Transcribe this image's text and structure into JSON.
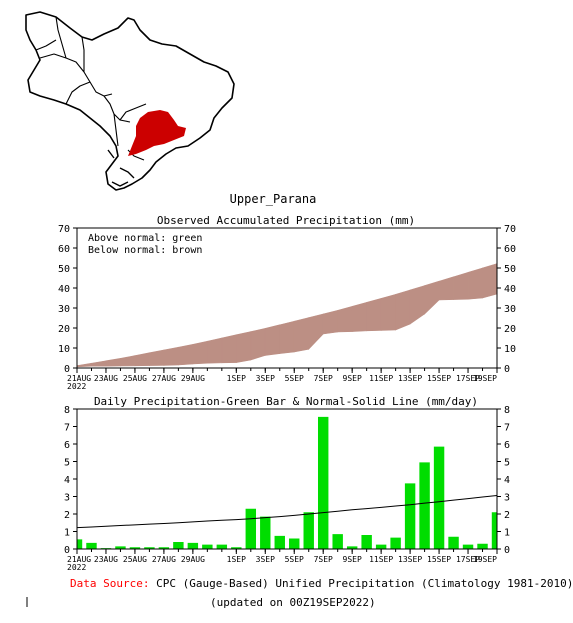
{
  "region_title": "Upper_Parana",
  "map": {
    "highlight_color": "#cc0000"
  },
  "chart_data": [
    {
      "type": "area",
      "title": "Observed Accumulated Precipitation (mm)",
      "annotation_lines": [
        "Above normal: green",
        "Below normal: brown"
      ],
      "ylim": [
        0,
        70
      ],
      "yticks": [
        0,
        10,
        20,
        30,
        40,
        50,
        60,
        70
      ],
      "xlim": [
        0,
        29
      ],
      "xticks": [
        {
          "day": 0,
          "label": "21AUG",
          "label2": "2022"
        },
        {
          "day": 2,
          "label": "23AUG"
        },
        {
          "day": 4,
          "label": "25AUG"
        },
        {
          "day": 6,
          "label": "27AUG"
        },
        {
          "day": 8,
          "label": "29AUG"
        },
        {
          "day": 11,
          "label": "1SEP"
        },
        {
          "day": 13,
          "label": "3SEP"
        },
        {
          "day": 15,
          "label": "5SEP"
        },
        {
          "day": 17,
          "label": "7SEP"
        },
        {
          "day": 19,
          "label": "9SEP"
        },
        {
          "day": 21,
          "label": "11SEP"
        },
        {
          "day": 23,
          "label": "13SEP"
        },
        {
          "day": 25,
          "label": "15SEP"
        },
        {
          "day": 27,
          "label": "17SEP"
        },
        {
          "day": 29,
          "label": "19SEP"
        }
      ],
      "series": [
        {
          "name": "Observed",
          "values": [
            0.6,
            0.9,
            0.9,
            1.0,
            1.1,
            1.2,
            1.3,
            1.5,
            2.0,
            2.4,
            2.6,
            2.7,
            4.0,
            6.3,
            7.2,
            8.0,
            9.4,
            17.0,
            18.0,
            18.2,
            18.6,
            18.8,
            19.0,
            22.0,
            27.0,
            34.0,
            34.2,
            34.4,
            35.0,
            37.0
          ]
        },
        {
          "name": "Normal",
          "values": [
            1.2,
            2.4,
            3.6,
            4.8,
            6.2,
            7.6,
            9.0,
            10.4,
            11.8,
            13.4,
            15.0,
            16.6,
            18.2,
            19.8,
            21.6,
            23.4,
            25.2,
            27.0,
            28.8,
            30.8,
            32.8,
            34.8,
            36.8,
            39.0,
            41.2,
            43.4,
            45.6,
            47.8,
            50.0,
            52.2
          ]
        }
      ],
      "colors": {
        "below_normal": "#bc8f84",
        "above_normal": "#22cc22"
      }
    },
    {
      "type": "bar",
      "title": "Daily Precipitation-Green Bar & Normal-Solid Line (mm/day)",
      "ylim": [
        0,
        8
      ],
      "yticks": [
        0,
        1,
        2,
        3,
        4,
        5,
        6,
        7,
        8
      ],
      "xlim": [
        0,
        29
      ],
      "xticks": [
        {
          "day": 0,
          "label": "21AUG",
          "label2": "2022"
        },
        {
          "day": 2,
          "label": "23AUG"
        },
        {
          "day": 4,
          "label": "25AUG"
        },
        {
          "day": 6,
          "label": "27AUG"
        },
        {
          "day": 8,
          "label": "29AUG"
        },
        {
          "day": 11,
          "label": "1SEP"
        },
        {
          "day": 13,
          "label": "3SEP"
        },
        {
          "day": 15,
          "label": "5SEP"
        },
        {
          "day": 17,
          "label": "7SEP"
        },
        {
          "day": 19,
          "label": "9SEP"
        },
        {
          "day": 21,
          "label": "11SEP"
        },
        {
          "day": 23,
          "label": "13SEP"
        },
        {
          "day": 25,
          "label": "15SEP"
        },
        {
          "day": 27,
          "label": "17SEP"
        },
        {
          "day": 29,
          "label": "19SEP"
        }
      ],
      "series": [
        {
          "name": "Daily Precipitation",
          "values": [
            0.55,
            0.35,
            0.05,
            0.15,
            0.1,
            0.1,
            0.1,
            0.4,
            0.35,
            0.25,
            0.25,
            0.1,
            2.3,
            1.85,
            0.75,
            0.6,
            2.1,
            7.55,
            0.85,
            0.15,
            0.8,
            0.25,
            0.65,
            3.75,
            4.95,
            5.85,
            0.7,
            0.25,
            0.3,
            2.1
          ]
        },
        {
          "name": "Normal",
          "values": [
            1.22,
            1.26,
            1.3,
            1.34,
            1.38,
            1.42,
            1.46,
            1.5,
            1.55,
            1.6,
            1.64,
            1.68,
            1.73,
            1.79,
            1.85,
            1.92,
            2.0,
            2.08,
            2.16,
            2.24,
            2.31,
            2.38,
            2.46,
            2.53,
            2.62,
            2.7,
            2.79,
            2.88,
            2.97,
            3.06
          ]
        }
      ],
      "colors": {
        "bar": "#00dd00",
        "line": "#000000"
      }
    }
  ],
  "footer": {
    "source_label": "Data Source:",
    "source_text": "CPC (Gauge-Based) Unified Precipitation (Climatology 1981-2010)",
    "updated": "(updated on 00Z19SEP2022)",
    "source_label_color": "#ff0000"
  }
}
